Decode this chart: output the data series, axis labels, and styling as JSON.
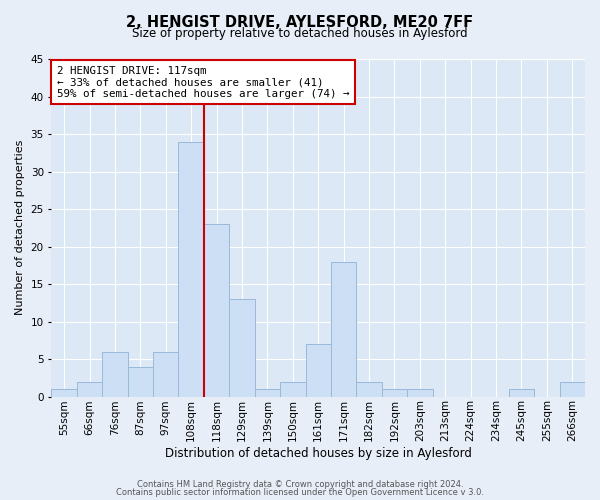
{
  "title": "2, HENGIST DRIVE, AYLESFORD, ME20 7FF",
  "subtitle": "Size of property relative to detached houses in Aylesford",
  "xlabel": "Distribution of detached houses by size in Aylesford",
  "ylabel": "Number of detached properties",
  "footer1": "Contains HM Land Registry data © Crown copyright and database right 2024.",
  "footer2": "Contains public sector information licensed under the Open Government Licence v 3.0.",
  "bins": [
    "55sqm",
    "66sqm",
    "76sqm",
    "87sqm",
    "97sqm",
    "108sqm",
    "118sqm",
    "129sqm",
    "139sqm",
    "150sqm",
    "161sqm",
    "171sqm",
    "182sqm",
    "192sqm",
    "203sqm",
    "213sqm",
    "224sqm",
    "234sqm",
    "245sqm",
    "255sqm",
    "266sqm"
  ],
  "values": [
    1,
    2,
    6,
    4,
    6,
    34,
    23,
    13,
    1,
    2,
    7,
    18,
    2,
    1,
    1,
    0,
    0,
    0,
    1,
    0,
    2
  ],
  "bar_color": "#ccdff5",
  "bar_edge_color": "#9ab8d8",
  "property_line_color": "#cc0000",
  "property_line_bin": 6,
  "annotation_text": "2 HENGIST DRIVE: 117sqm\n← 33% of detached houses are smaller (41)\n59% of semi-detached houses are larger (74) →",
  "annotation_box_color": "#ffffff",
  "annotation_box_edge_color": "#cc0000",
  "ylim": [
    0,
    45
  ],
  "yticks": [
    0,
    5,
    10,
    15,
    20,
    25,
    30,
    35,
    40,
    45
  ],
  "bg_color": "#e8eef8",
  "plot_bg_color": "#dce8f5",
  "title_fontsize": 10.5,
  "subtitle_fontsize": 8.5,
  "ylabel_fontsize": 8,
  "xlabel_fontsize": 8.5,
  "tick_fontsize": 7.5,
  "annotation_fontsize": 7.8,
  "footer_fontsize": 6.0
}
